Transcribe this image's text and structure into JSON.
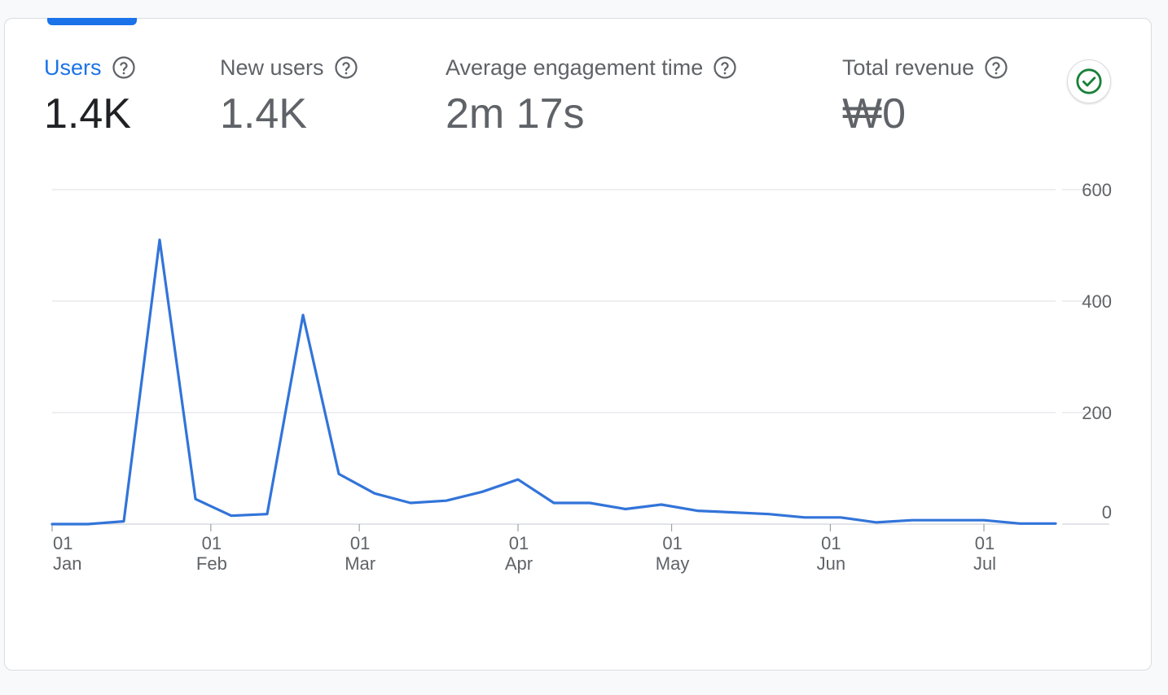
{
  "metrics": [
    {
      "label": "Users",
      "value": "1.4K",
      "active": true
    },
    {
      "label": "New users",
      "value": "1.4K",
      "active": false
    },
    {
      "label": "Average engagement time",
      "value": "2m 17s",
      "active": false
    },
    {
      "label": "Total revenue",
      "value": "₩0",
      "active": false
    }
  ],
  "icons": {
    "help": "help-circle-icon",
    "status": "check-circle-icon"
  },
  "colors": {
    "accent": "#1a73e8",
    "line": "#3274d9",
    "status": "#188038",
    "grid": "#e8eaed"
  },
  "chart_data": {
    "type": "line",
    "x": [
      "2024-01-01",
      "2024-01-08",
      "2024-01-15",
      "2024-01-22",
      "2024-01-29",
      "2024-02-05",
      "2024-02-12",
      "2024-02-19",
      "2024-02-26",
      "2024-03-04",
      "2024-03-11",
      "2024-03-18",
      "2024-03-25",
      "2024-04-01",
      "2024-04-08",
      "2024-04-15",
      "2024-04-22",
      "2024-04-29",
      "2024-05-06",
      "2024-05-13",
      "2024-05-20",
      "2024-05-27",
      "2024-06-03",
      "2024-06-10",
      "2024-06-17",
      "2024-06-24",
      "2024-07-01",
      "2024-07-08",
      "2024-07-15"
    ],
    "series": [
      {
        "values": [
          0,
          0,
          5,
          510,
          45,
          15,
          18,
          375,
          90,
          55,
          38,
          42,
          58,
          80,
          38,
          38,
          27,
          35,
          24,
          21,
          18,
          12,
          12,
          3,
          7,
          7,
          7,
          1,
          1
        ]
      }
    ],
    "ylim": [
      0,
      600
    ],
    "yticks": [
      0,
      200,
      400,
      600
    ],
    "xticks": [
      {
        "date": "2024-01-01",
        "day": "01",
        "month": "Jan"
      },
      {
        "date": "2024-02-01",
        "day": "01",
        "month": "Feb"
      },
      {
        "date": "2024-03-01",
        "day": "01",
        "month": "Mar"
      },
      {
        "date": "2024-04-01",
        "day": "01",
        "month": "Apr"
      },
      {
        "date": "2024-05-01",
        "day": "01",
        "month": "May"
      },
      {
        "date": "2024-06-01",
        "day": "01",
        "month": "Jun"
      },
      {
        "date": "2024-07-01",
        "day": "01",
        "month": "Jul"
      }
    ],
    "grid": true
  }
}
